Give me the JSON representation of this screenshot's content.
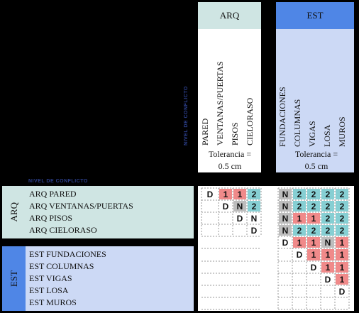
{
  "nivel_label": "NIVEL DE CONFLICTO",
  "groups": {
    "arq": {
      "title": "ARQ",
      "color": "#cfe5e3",
      "columns": [
        "PARED",
        "VENTANAS/PUERTAS",
        "PISOS",
        "CIELORASO"
      ],
      "tolerance": "Tolerancia = 0.5 cm"
    },
    "est": {
      "title": "EST",
      "color": "#4f86e6",
      "columns": [
        "FUNDACIONES",
        "COLUMNAS",
        "VIGAS",
        "LOSA",
        "MUROS"
      ],
      "tolerance": "Tolerancia = 0.5 cm"
    }
  },
  "rows": {
    "arq": {
      "title": "ARQ",
      "labels": [
        "ARQ PARED",
        "ARQ VENTANAS/PUERTAS",
        "ARQ PISOS",
        "ARQ CIELORASO"
      ]
    },
    "est": {
      "title": "EST",
      "labels": [
        "EST FUNDACIONES",
        "EST COLUMNAS",
        "EST VIGAS",
        "EST LOSA",
        "EST MUROS"
      ]
    }
  },
  "matrix": {
    "rows": [
      [
        "D",
        "1",
        "1",
        "2",
        "",
        "N",
        "2",
        "2",
        "2",
        "2"
      ],
      [
        "",
        "D",
        "N",
        "2",
        "",
        "N",
        "2",
        "2",
        "2",
        "2"
      ],
      [
        "",
        "",
        "D",
        "N",
        "",
        "N",
        "1",
        "1",
        "2",
        "2"
      ],
      [
        "",
        "",
        "",
        "D",
        "",
        "N",
        "2",
        "2",
        "2",
        "2"
      ],
      [
        "",
        "",
        "",
        "",
        "",
        "D",
        "1",
        "1",
        "N",
        "1"
      ],
      [
        "",
        "",
        "",
        "",
        "",
        "",
        "D",
        "1",
        "1",
        "1"
      ],
      [
        "",
        "",
        "",
        "",
        "",
        "",
        "",
        "D",
        "1",
        "1"
      ],
      [
        "",
        "",
        "",
        "",
        "",
        "",
        "",
        "",
        "D",
        "1"
      ],
      [
        "",
        "",
        "",
        "",
        "",
        "",
        "",
        "",
        "",
        "D"
      ]
    ],
    "colors": [
      [
        "plain",
        "red",
        "red",
        "teal",
        "",
        "gray",
        "teal",
        "teal",
        "teal",
        "teal"
      ],
      [
        "",
        "plain",
        "gray",
        "teal",
        "",
        "gray",
        "teal",
        "teal",
        "teal",
        "teal"
      ],
      [
        "",
        "",
        "plain",
        "plain",
        "",
        "gray",
        "red",
        "red",
        "teal",
        "teal"
      ],
      [
        "",
        "",
        "",
        "plain",
        "",
        "gray",
        "teal",
        "teal",
        "teal",
        "teal"
      ],
      [
        "",
        "",
        "",
        "",
        "",
        "plain",
        "red",
        "red",
        "gray",
        "red"
      ],
      [
        "",
        "",
        "",
        "",
        "",
        "",
        "plain",
        "red",
        "red",
        "red"
      ],
      [
        "",
        "",
        "",
        "",
        "",
        "",
        "",
        "plain",
        "red",
        "red"
      ],
      [
        "",
        "",
        "",
        "",
        "",
        "",
        "",
        "",
        "plain",
        "red"
      ],
      [
        "",
        "",
        "",
        "",
        "",
        "",
        "",
        "",
        "",
        "plain"
      ]
    ]
  }
}
